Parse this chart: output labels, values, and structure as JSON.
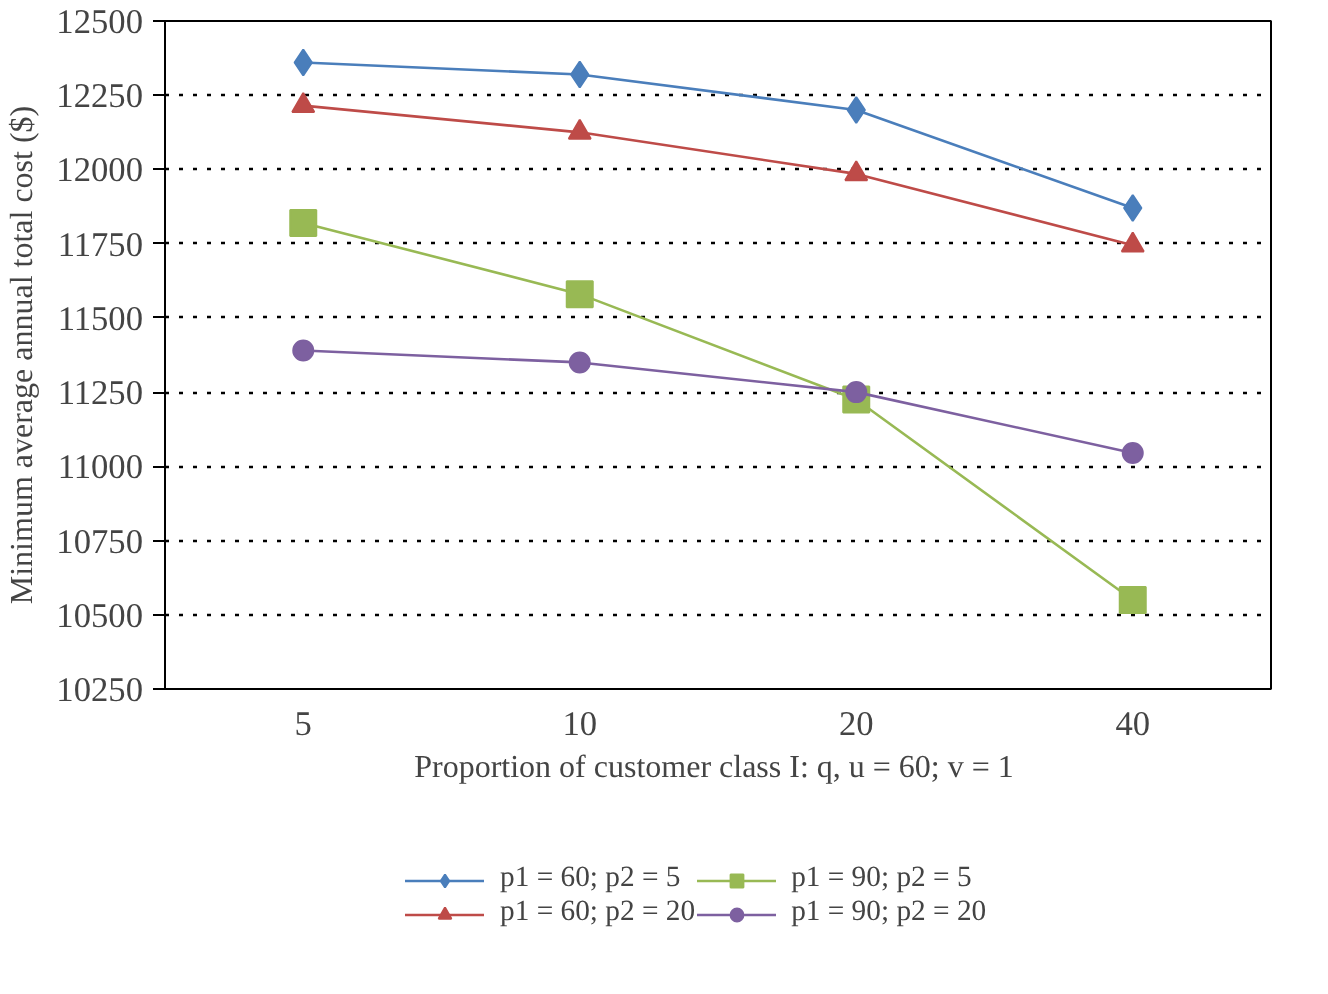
{
  "chart_data": {
    "type": "line",
    "xlabel": "Proportion of customer class I: q, u = 60;  v = 1",
    "ylabel": "Minimum average annual total cost ($)",
    "categories": [
      "5",
      "10",
      "20",
      "40"
    ],
    "ylim": [
      10250,
      12500
    ],
    "yticks": [
      10250,
      10500,
      10750,
      11000,
      11250,
      11500,
      11750,
      12000,
      12250,
      12500
    ],
    "grid": "y",
    "legend": "bottom",
    "series": [
      {
        "name": "p1 = 60; p2 = 5",
        "color": "#4a7ebb",
        "marker": "diamond",
        "values": [
          12360,
          12320,
          12200,
          11870
        ]
      },
      {
        "name": "p1 = 60; p2 = 20",
        "color": "#be4b48",
        "marker": "triangle",
        "values": [
          12215,
          12125,
          11985,
          11745
        ]
      },
      {
        "name": "p1 = 90; p2 = 5",
        "color": "#98b954",
        "marker": "square",
        "values": [
          11820,
          11580,
          11225,
          10550
        ]
      },
      {
        "name": "p1 = 90; p2 = 20",
        "color": "#7d60a0",
        "marker": "circle",
        "values": [
          11390,
          11350,
          11250,
          11045
        ]
      }
    ]
  }
}
